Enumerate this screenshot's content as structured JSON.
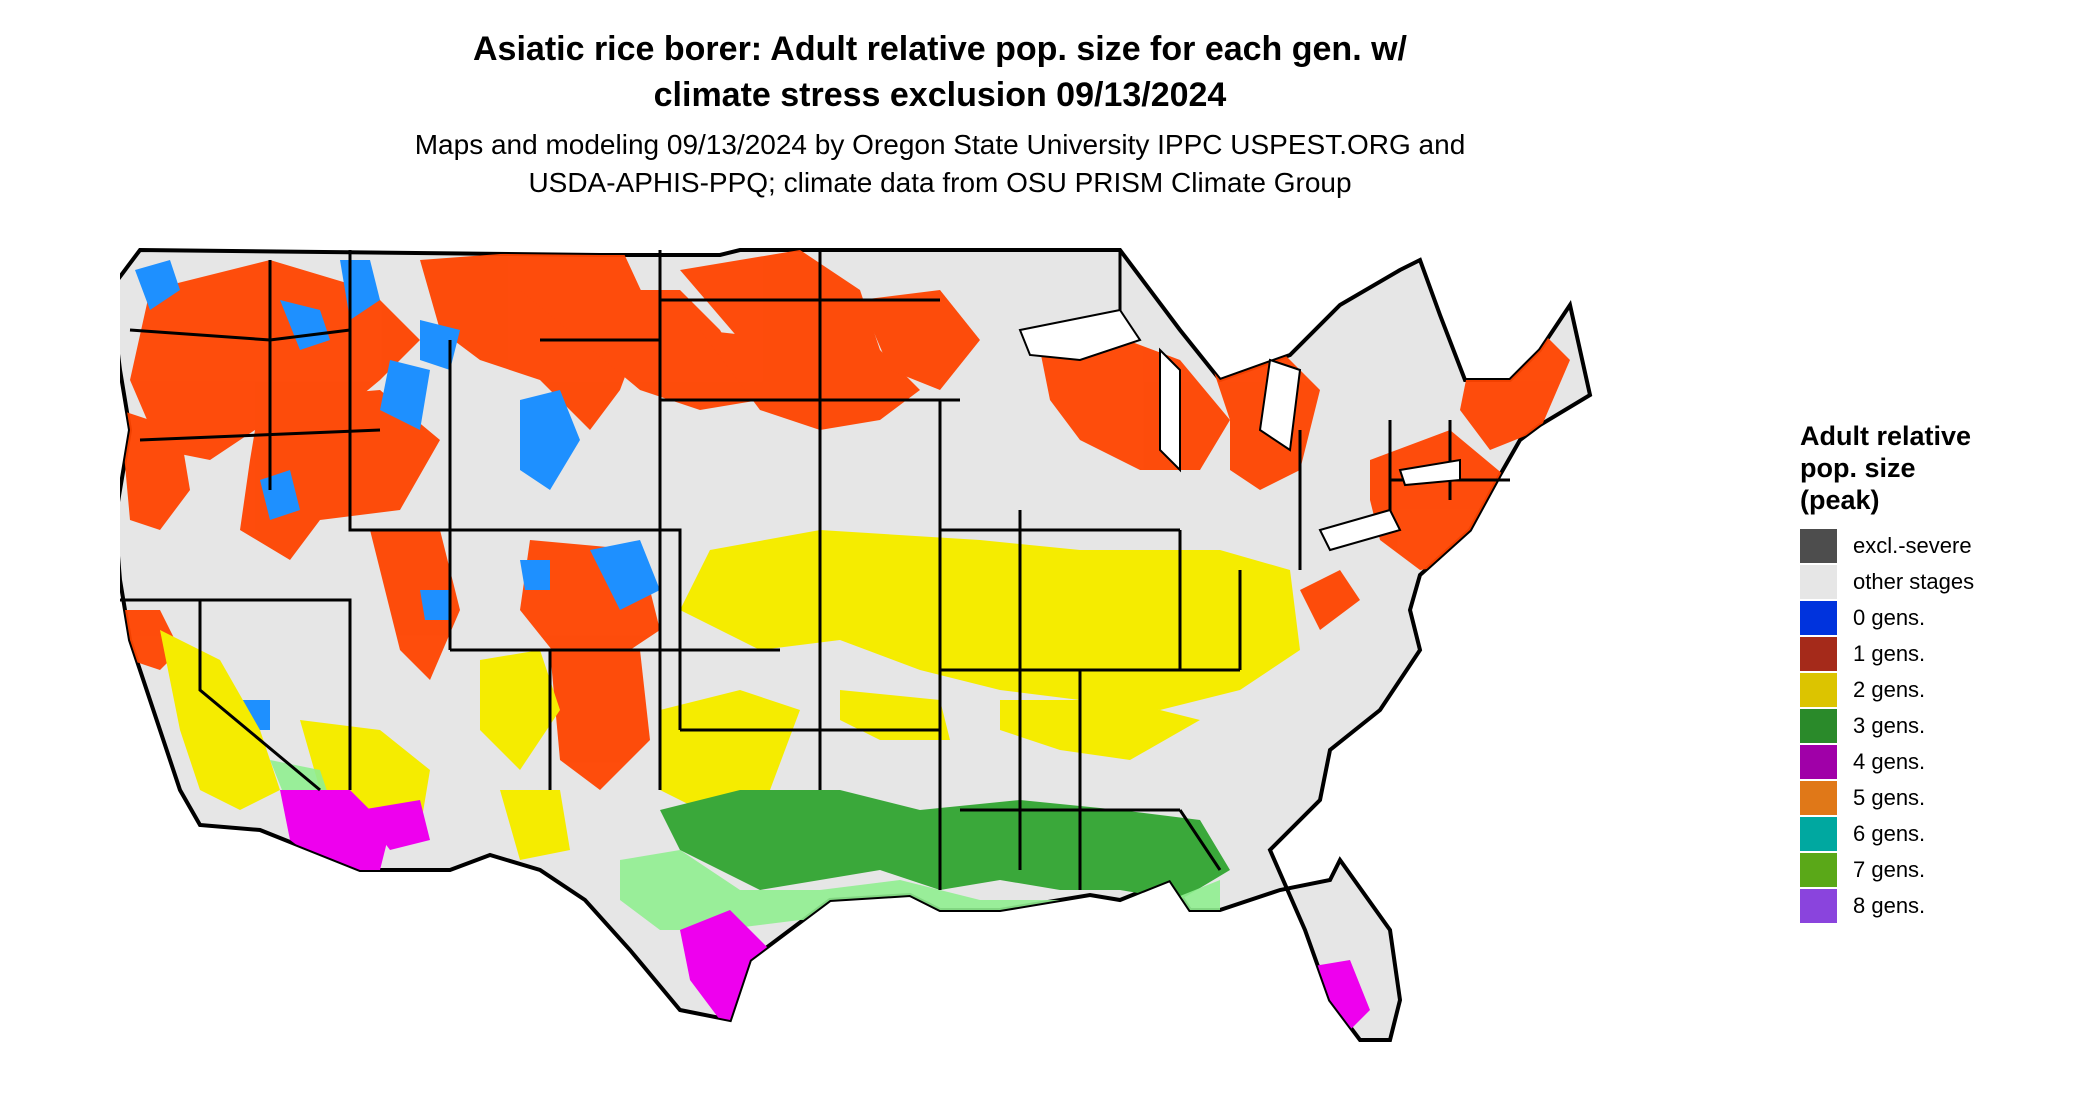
{
  "title": {
    "line1": "Asiatic rice borer: Adult relative pop. size for each gen. w/",
    "line2": "climate stress exclusion 09/13/2024"
  },
  "subtitle": {
    "line1": "Maps and modeling 09/13/2024 by Oregon State University IPPC USPEST.ORG and",
    "line2": "USDA-APHIS-PPQ; climate data from OSU PRISM Climate Group"
  },
  "legend": {
    "title_line1": "Adult relative",
    "title_line2": "pop. size",
    "title_line3": "(peak)",
    "items": [
      {
        "label": "excl.-severe",
        "color": "#4d4d4d"
      },
      {
        "label": "other stages",
        "color": "#e6e6e6"
      },
      {
        "label": "0 gens.",
        "color": "#0033dd"
      },
      {
        "label": "1 gens.",
        "color": "#a52a1a"
      },
      {
        "label": "2 gens.",
        "color": "#dcc400"
      },
      {
        "label": "3 gens.",
        "color": "#2a8a2a"
      },
      {
        "label": "4 gens.",
        "color": "#a000a8"
      },
      {
        "label": "5 gens.",
        "color": "#e07818"
      },
      {
        "label": "6 gens.",
        "color": "#00a8a0"
      },
      {
        "label": "7 gens.",
        "color": "#5aa818"
      },
      {
        "label": "8 gens.",
        "color": "#8a44dd"
      }
    ]
  },
  "map_colors": {
    "background_land": "#e6e6e6",
    "one_gen_display": "#ff4400",
    "two_gen_display": "#f5ec00",
    "three_gen_display": "#3aa83a",
    "three_gen_light": "#90ee90",
    "four_gen_display": "#ee00ee",
    "zero_gen_display": "#1e90ff",
    "borders": "#000000"
  }
}
